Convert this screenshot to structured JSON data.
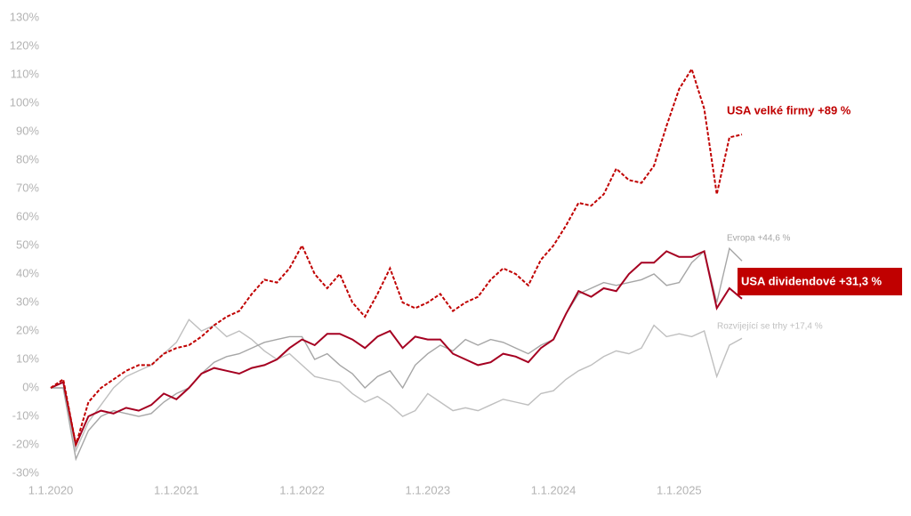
{
  "chart_data": {
    "type": "line",
    "x": [
      2020.0,
      2020.1,
      2020.2,
      2020.3,
      2020.4,
      2020.5,
      2020.6,
      2020.7,
      2020.8,
      2020.9,
      2021.0,
      2021.1,
      2021.2,
      2021.3,
      2021.4,
      2021.5,
      2021.6,
      2021.7,
      2021.8,
      2021.9,
      2022.0,
      2022.1,
      2022.2,
      2022.3,
      2022.4,
      2022.5,
      2022.6,
      2022.7,
      2022.8,
      2022.9,
      2023.0,
      2023.1,
      2023.2,
      2023.3,
      2023.4,
      2023.5,
      2023.6,
      2023.7,
      2023.8,
      2023.9,
      2024.0,
      2024.1,
      2024.2,
      2024.3,
      2024.4,
      2024.5,
      2024.6,
      2024.7,
      2024.8,
      2024.9,
      2025.0,
      2025.1,
      2025.2,
      2025.3,
      2025.4,
      2025.5
    ],
    "xlim": [
      2020.0,
      2025.5
    ],
    "xticks": [
      {
        "value": 2020,
        "label": "1.1.2020"
      },
      {
        "value": 2021,
        "label": "1.1.2021"
      },
      {
        "value": 2022,
        "label": "1.1.2022"
      },
      {
        "value": 2023,
        "label": "1.1.2023"
      },
      {
        "value": 2024,
        "label": "1.1.2024"
      },
      {
        "value": 2025,
        "label": "1.1.2025"
      }
    ],
    "ylim": [
      -30,
      130
    ],
    "yticks": [
      {
        "value": -30,
        "label": "-30%"
      },
      {
        "value": -20,
        "label": "-20%"
      },
      {
        "value": -10,
        "label": "-10%"
      },
      {
        "value": 0,
        "label": "0%"
      },
      {
        "value": 10,
        "label": "10%"
      },
      {
        "value": 20,
        "label": "20%"
      },
      {
        "value": 30,
        "label": "30%"
      },
      {
        "value": 40,
        "label": "40%"
      },
      {
        "value": 50,
        "label": "50%"
      },
      {
        "value": 60,
        "label": "60%"
      },
      {
        "value": 70,
        "label": "70%"
      },
      {
        "value": 80,
        "label": "80%"
      },
      {
        "value": 90,
        "label": "90%"
      },
      {
        "value": 100,
        "label": "100%"
      },
      {
        "value": 110,
        "label": "110%"
      },
      {
        "value": 120,
        "label": "120%"
      },
      {
        "value": 130,
        "label": "130%"
      }
    ],
    "series": [
      {
        "name": "Rozvíjející se trhy +17,4 %",
        "color": "#bfbfbf",
        "values": [
          0,
          0,
          -22,
          -12,
          -6,
          0,
          4,
          6,
          8,
          12,
          16,
          24,
          20,
          22,
          18,
          20,
          17,
          13,
          10,
          12,
          8,
          4,
          3,
          2,
          -2,
          -5,
          -3,
          -6,
          -10,
          -8,
          -2,
          -5,
          -8,
          -7,
          -8,
          -6,
          -4,
          -5,
          -6,
          -2,
          -1,
          3,
          6,
          8,
          11,
          13,
          12,
          14,
          22,
          18,
          19,
          18,
          20,
          4,
          15,
          17.4
        ]
      },
      {
        "name": "Evropa +44,6 %",
        "color": "#a6a6a6",
        "values": [
          0,
          0,
          -25,
          -15,
          -10,
          -8,
          -9,
          -10,
          -9,
          -5,
          -2,
          0,
          5,
          9,
          11,
          12,
          14,
          16,
          17,
          18,
          18,
          10,
          12,
          8,
          5,
          0,
          4,
          6,
          0,
          8,
          12,
          15,
          13,
          17,
          15,
          17,
          16,
          14,
          12,
          15,
          17,
          26,
          33,
          35,
          37,
          36,
          37,
          38,
          40,
          36,
          37,
          44,
          48,
          30,
          49,
          44.6
        ]
      },
      {
        "name": "USA dividendové +31,3 %",
        "color": "#a50021",
        "label_background": "#c00000",
        "values": [
          0,
          2,
          -20,
          -10,
          -8,
          -9,
          -7,
          -8,
          -6,
          -2,
          -4,
          0,
          5,
          7,
          6,
          5,
          7,
          8,
          10,
          14,
          17,
          15,
          19,
          19,
          17,
          14,
          18,
          20,
          14,
          18,
          17,
          17,
          12,
          10,
          8,
          9,
          12,
          11,
          9,
          14,
          17,
          26,
          34,
          32,
          35,
          34,
          40,
          44,
          44,
          48,
          46,
          46,
          48,
          28,
          35,
          31.3
        ]
      },
      {
        "name": "USA velké firmy +89 %",
        "color": "#c00000",
        "dashed": true,
        "values": [
          0,
          3,
          -20,
          -5,
          0,
          3,
          6,
          8,
          8,
          12,
          14,
          15,
          18,
          22,
          25,
          27,
          33,
          38,
          37,
          42,
          50,
          40,
          35,
          40,
          30,
          25,
          33,
          42,
          30,
          28,
          30,
          33,
          27,
          30,
          32,
          38,
          42,
          40,
          36,
          45,
          50,
          57,
          65,
          64,
          68,
          77,
          73,
          72,
          78,
          92,
          105,
          112,
          98,
          68,
          88,
          89
        ]
      }
    ]
  }
}
